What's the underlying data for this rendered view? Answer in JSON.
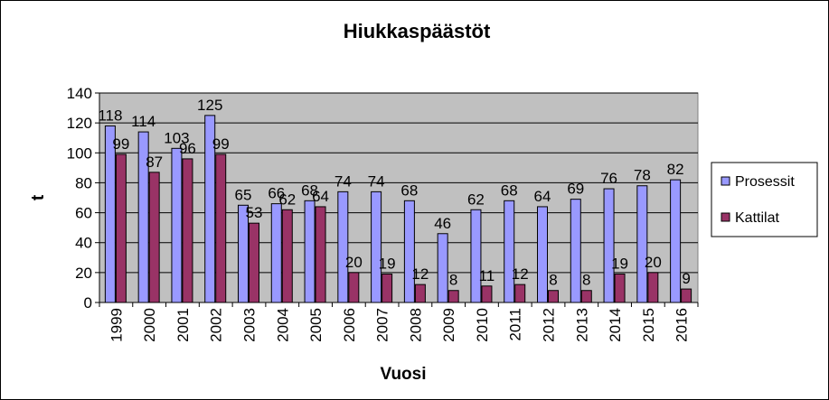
{
  "chart_data": {
    "type": "bar",
    "title": "Hiukkaspäästöt",
    "xlabel": "Vuosi",
    "ylabel": "t",
    "ylim": [
      0,
      140
    ],
    "yticks": [
      0,
      20,
      40,
      60,
      80,
      100,
      120,
      140
    ],
    "grid": true,
    "legend_position": "right",
    "plot_background": "#c0c0c0",
    "categories": [
      "1999",
      "2000",
      "2001",
      "2002",
      "2003",
      "2004",
      "2005",
      "2006",
      "2007",
      "2008",
      "2009",
      "2010",
      "2011",
      "2012",
      "2013",
      "2014",
      "2015",
      "2016"
    ],
    "series": [
      {
        "name": "Prosessit",
        "color": "#9999ff",
        "values": [
          118,
          114,
          103,
          125,
          65,
          66,
          68,
          74,
          74,
          68,
          46,
          62,
          68,
          64,
          69,
          76,
          78,
          82
        ]
      },
      {
        "name": "Kattilat",
        "color": "#993366",
        "values": [
          99,
          87,
          96,
          99,
          53,
          62,
          64,
          20,
          19,
          12,
          8,
          11,
          12,
          8,
          8,
          19,
          20,
          9
        ]
      }
    ]
  }
}
